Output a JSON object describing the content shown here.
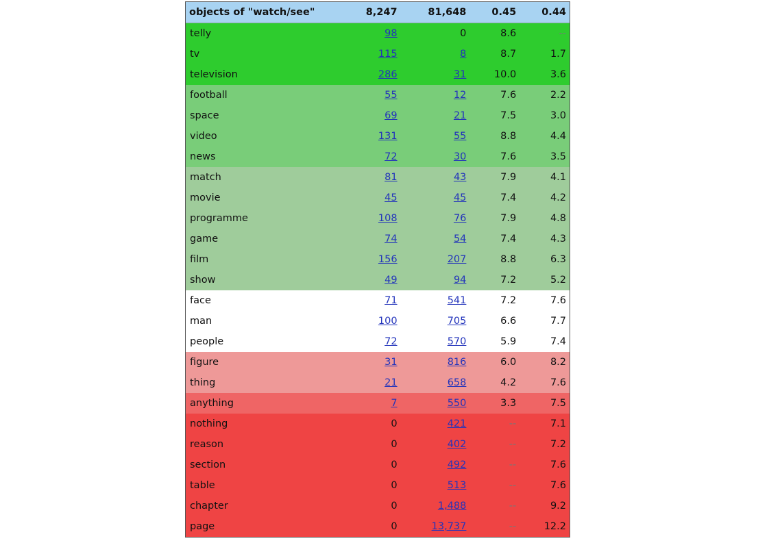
{
  "header": {
    "label": "objects of \"watch/see\"",
    "col1": "8,247",
    "col2": "81,648",
    "col3": "0.45",
    "col4": "0.44"
  },
  "group_colors": {
    "g1": "#2ecc2e",
    "g2": "#79cd79",
    "g3": "#9fcc9b",
    "white": "#ffffff",
    "r1": "#ee9998",
    "r2": "#ef6565",
    "r3": "#ef4444"
  },
  "rows": [
    {
      "word": "telly",
      "f1": "98",
      "f2": "0",
      "s1": "8.6",
      "s2": "--",
      "group": "g1",
      "l1": true,
      "l2": false
    },
    {
      "word": "tv",
      "f1": "115",
      "f2": "8",
      "s1": "8.7",
      "s2": "1.7",
      "group": "g1",
      "l1": true,
      "l2": true
    },
    {
      "word": "television",
      "f1": "286",
      "f2": "31",
      "s1": "10.0",
      "s2": "3.6",
      "group": "g1",
      "l1": true,
      "l2": true
    },
    {
      "word": "football",
      "f1": "55",
      "f2": "12",
      "s1": "7.6",
      "s2": "2.2",
      "group": "g2",
      "l1": true,
      "l2": true
    },
    {
      "word": "space",
      "f1": "69",
      "f2": "21",
      "s1": "7.5",
      "s2": "3.0",
      "group": "g2",
      "l1": true,
      "l2": true
    },
    {
      "word": "video",
      "f1": "131",
      "f2": "55",
      "s1": "8.8",
      "s2": "4.4",
      "group": "g2",
      "l1": true,
      "l2": true
    },
    {
      "word": "news",
      "f1": "72",
      "f2": "30",
      "s1": "7.6",
      "s2": "3.5",
      "group": "g2",
      "l1": true,
      "l2": true
    },
    {
      "word": "match",
      "f1": "81",
      "f2": "43",
      "s1": "7.9",
      "s2": "4.1",
      "group": "g3",
      "l1": true,
      "l2": true
    },
    {
      "word": "movie",
      "f1": "45",
      "f2": "45",
      "s1": "7.4",
      "s2": "4.2",
      "group": "g3",
      "l1": true,
      "l2": true
    },
    {
      "word": "programme",
      "f1": "108",
      "f2": "76",
      "s1": "7.9",
      "s2": "4.8",
      "group": "g3",
      "l1": true,
      "l2": true
    },
    {
      "word": "game",
      "f1": "74",
      "f2": "54",
      "s1": "7.4",
      "s2": "4.3",
      "group": "g3",
      "l1": true,
      "l2": true
    },
    {
      "word": "film",
      "f1": "156",
      "f2": "207",
      "s1": "8.8",
      "s2": "6.3",
      "group": "g3",
      "l1": true,
      "l2": true
    },
    {
      "word": "show",
      "f1": "49",
      "f2": "94",
      "s1": "7.2",
      "s2": "5.2",
      "group": "g3",
      "l1": true,
      "l2": true
    },
    {
      "word": "face",
      "f1": "71",
      "f2": "541",
      "s1": "7.2",
      "s2": "7.6",
      "group": "white",
      "l1": true,
      "l2": true
    },
    {
      "word": "man",
      "f1": "100",
      "f2": "705",
      "s1": "6.6",
      "s2": "7.7",
      "group": "white",
      "l1": true,
      "l2": true
    },
    {
      "word": "people",
      "f1": "72",
      "f2": "570",
      "s1": "5.9",
      "s2": "7.4",
      "group": "white",
      "l1": true,
      "l2": true
    },
    {
      "word": "figure",
      "f1": "31",
      "f2": "816",
      "s1": "6.0",
      "s2": "8.2",
      "group": "r1",
      "l1": true,
      "l2": true
    },
    {
      "word": "thing",
      "f1": "21",
      "f2": "658",
      "s1": "4.2",
      "s2": "7.6",
      "group": "r1",
      "l1": true,
      "l2": true
    },
    {
      "word": "anything",
      "f1": "7",
      "f2": "550",
      "s1": "3.3",
      "s2": "7.5",
      "group": "r2",
      "l1": true,
      "l2": true
    },
    {
      "word": "nothing",
      "f1": "0",
      "f2": "421",
      "s1": "--",
      "s2": "7.1",
      "group": "r3",
      "l1": false,
      "l2": true
    },
    {
      "word": "reason",
      "f1": "0",
      "f2": "402",
      "s1": "--",
      "s2": "7.2",
      "group": "r3",
      "l1": false,
      "l2": true
    },
    {
      "word": "section",
      "f1": "0",
      "f2": "492",
      "s1": "--",
      "s2": "7.6",
      "group": "r3",
      "l1": false,
      "l2": true
    },
    {
      "word": "table",
      "f1": "0",
      "f2": "513",
      "s1": "--",
      "s2": "7.6",
      "group": "r3",
      "l1": false,
      "l2": true
    },
    {
      "word": "chapter",
      "f1": "0",
      "f2": "1,488",
      "s1": "--",
      "s2": "9.2",
      "group": "r3",
      "l1": false,
      "l2": true
    },
    {
      "word": "page",
      "f1": "0",
      "f2": "13,737",
      "s1": "--",
      "s2": "12.2",
      "group": "r3",
      "l1": false,
      "l2": true
    }
  ]
}
